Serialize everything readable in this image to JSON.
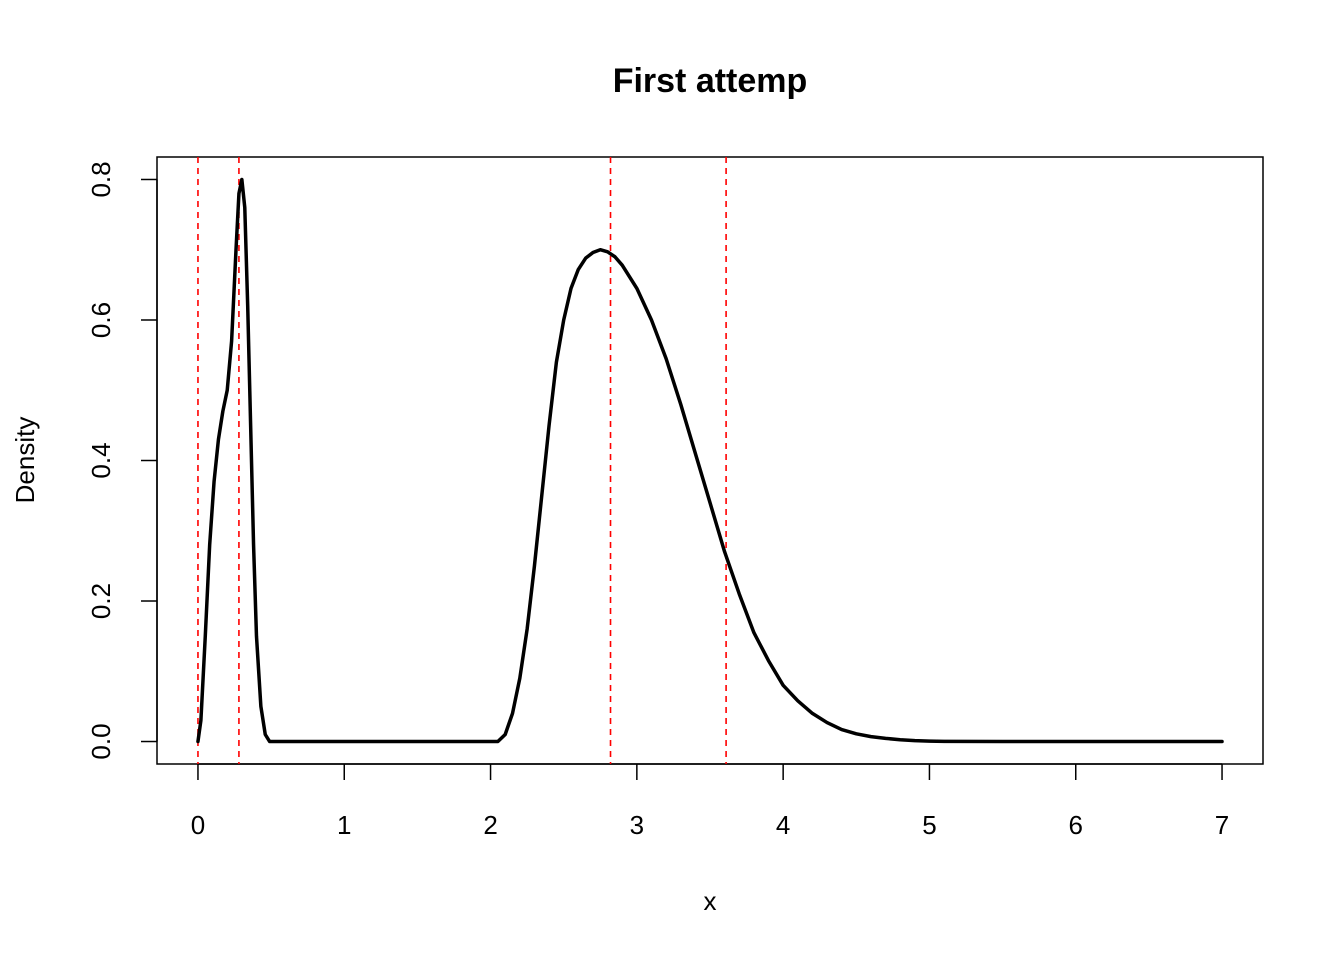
{
  "chart_data": {
    "type": "line",
    "title": "First attemp",
    "xlabel": "x",
    "ylabel": "Density",
    "xlim": [
      -0.28,
      7.28
    ],
    "ylim": [
      -0.032,
      0.832
    ],
    "x_ticks": [
      0,
      1,
      2,
      3,
      4,
      5,
      6,
      7
    ],
    "x_tick_labels": [
      "0",
      "1",
      "2",
      "3",
      "4",
      "5",
      "6",
      "7"
    ],
    "y_ticks": [
      0.0,
      0.2,
      0.4,
      0.6,
      0.8
    ],
    "y_tick_labels": [
      "0.0",
      "0.2",
      "0.4",
      "0.6",
      "0.8"
    ],
    "grid": false,
    "series": [
      {
        "color": "#000000",
        "points": [
          [
            0.0,
            0.0
          ],
          [
            0.02,
            0.03
          ],
          [
            0.05,
            0.15
          ],
          [
            0.08,
            0.28
          ],
          [
            0.11,
            0.37
          ],
          [
            0.14,
            0.43
          ],
          [
            0.17,
            0.47
          ],
          [
            0.2,
            0.5
          ],
          [
            0.23,
            0.57
          ],
          [
            0.26,
            0.7
          ],
          [
            0.28,
            0.78
          ],
          [
            0.3,
            0.8
          ],
          [
            0.32,
            0.76
          ],
          [
            0.34,
            0.62
          ],
          [
            0.36,
            0.45
          ],
          [
            0.38,
            0.28
          ],
          [
            0.4,
            0.15
          ],
          [
            0.43,
            0.05
          ],
          [
            0.46,
            0.01
          ],
          [
            0.49,
            0.0
          ],
          [
            1.0,
            0.0
          ],
          [
            1.5,
            0.0
          ],
          [
            2.0,
            0.0
          ],
          [
            2.05,
            0.0
          ],
          [
            2.1,
            0.01
          ],
          [
            2.15,
            0.04
          ],
          [
            2.2,
            0.09
          ],
          [
            2.25,
            0.16
          ],
          [
            2.3,
            0.25
          ],
          [
            2.35,
            0.35
          ],
          [
            2.4,
            0.45
          ],
          [
            2.45,
            0.54
          ],
          [
            2.5,
            0.6
          ],
          [
            2.55,
            0.645
          ],
          [
            2.6,
            0.672
          ],
          [
            2.65,
            0.688
          ],
          [
            2.7,
            0.696
          ],
          [
            2.75,
            0.7
          ],
          [
            2.8,
            0.697
          ],
          [
            2.85,
            0.69
          ],
          [
            2.9,
            0.678
          ],
          [
            3.0,
            0.645
          ],
          [
            3.1,
            0.6
          ],
          [
            3.2,
            0.545
          ],
          [
            3.3,
            0.48
          ],
          [
            3.4,
            0.41
          ],
          [
            3.5,
            0.34
          ],
          [
            3.6,
            0.27
          ],
          [
            3.7,
            0.21
          ],
          [
            3.8,
            0.155
          ],
          [
            3.9,
            0.115
          ],
          [
            4.0,
            0.08
          ],
          [
            4.1,
            0.058
          ],
          [
            4.2,
            0.04
          ],
          [
            4.3,
            0.027
          ],
          [
            4.4,
            0.017
          ],
          [
            4.5,
            0.011
          ],
          [
            4.6,
            0.007
          ],
          [
            4.7,
            0.0045
          ],
          [
            4.8,
            0.0025
          ],
          [
            4.9,
            0.0012
          ],
          [
            5.0,
            0.0006
          ],
          [
            5.1,
            0.0002
          ],
          [
            5.5,
            0.0
          ],
          [
            6.0,
            0.0
          ],
          [
            6.5,
            0.0
          ],
          [
            7.0,
            0.0
          ]
        ]
      }
    ],
    "vlines": [
      {
        "x": 0.0,
        "color": "#ff0000",
        "style": "dashed"
      },
      {
        "x": 0.28,
        "color": "#ff0000",
        "style": "dashed"
      },
      {
        "x": 2.82,
        "color": "#ff0000",
        "style": "dashed"
      },
      {
        "x": 3.61,
        "color": "#ff0000",
        "style": "dashed"
      }
    ]
  }
}
